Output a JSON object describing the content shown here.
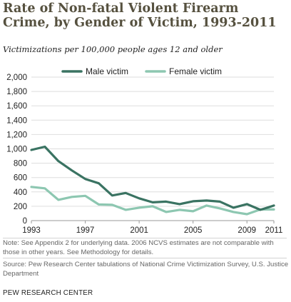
{
  "header": {
    "title": "Rate of Non-fatal Violent Firearm Crime, by Gender of Victim, 1993-2011",
    "subtitle": "Victimizations per 100,000  people ages 12 and older"
  },
  "chart_data": {
    "type": "line",
    "x": [
      1993,
      1994,
      1995,
      1996,
      1997,
      1998,
      1999,
      2000,
      2001,
      2002,
      2003,
      2004,
      2005,
      2006,
      2007,
      2008,
      2009,
      2010,
      2011
    ],
    "xticks": [
      1993,
      1997,
      2001,
      2005,
      2009,
      2011
    ],
    "xlim": [
      1993,
      2011
    ],
    "ylim": [
      0,
      2000
    ],
    "yticks": [
      0,
      200,
      400,
      600,
      800,
      1000,
      1200,
      1400,
      1600,
      1800,
      2000
    ],
    "ytick_labels": [
      "0",
      "200",
      "400",
      "600",
      "800",
      "1,000",
      "1,200",
      "1,400",
      "1,600",
      "1,800",
      "2,000"
    ],
    "grid": "horizontal",
    "legend": "top",
    "series": [
      {
        "name": "Male victim",
        "color": "#3a7362",
        "values": [
          985,
          1030,
          830,
          700,
          580,
          520,
          350,
          385,
          310,
          255,
          265,
          230,
          270,
          280,
          265,
          180,
          230,
          150,
          210
        ]
      },
      {
        "name": "Female victim",
        "color": "#8dc7b1",
        "values": [
          470,
          450,
          290,
          330,
          345,
          225,
          220,
          150,
          180,
          200,
          120,
          150,
          130,
          210,
          170,
          120,
          90,
          155,
          155
        ]
      }
    ]
  },
  "note": "Note: See Appendix 2 for underlying data. 2006 NCVS estimates are not comparable with those in other years. See Methodology for details.",
  "source": "Source: Pew Research Center tabulations of National Crime Victimization Survey, U.S. Justice Department",
  "footer": "PEW RESEARCH CENTER"
}
